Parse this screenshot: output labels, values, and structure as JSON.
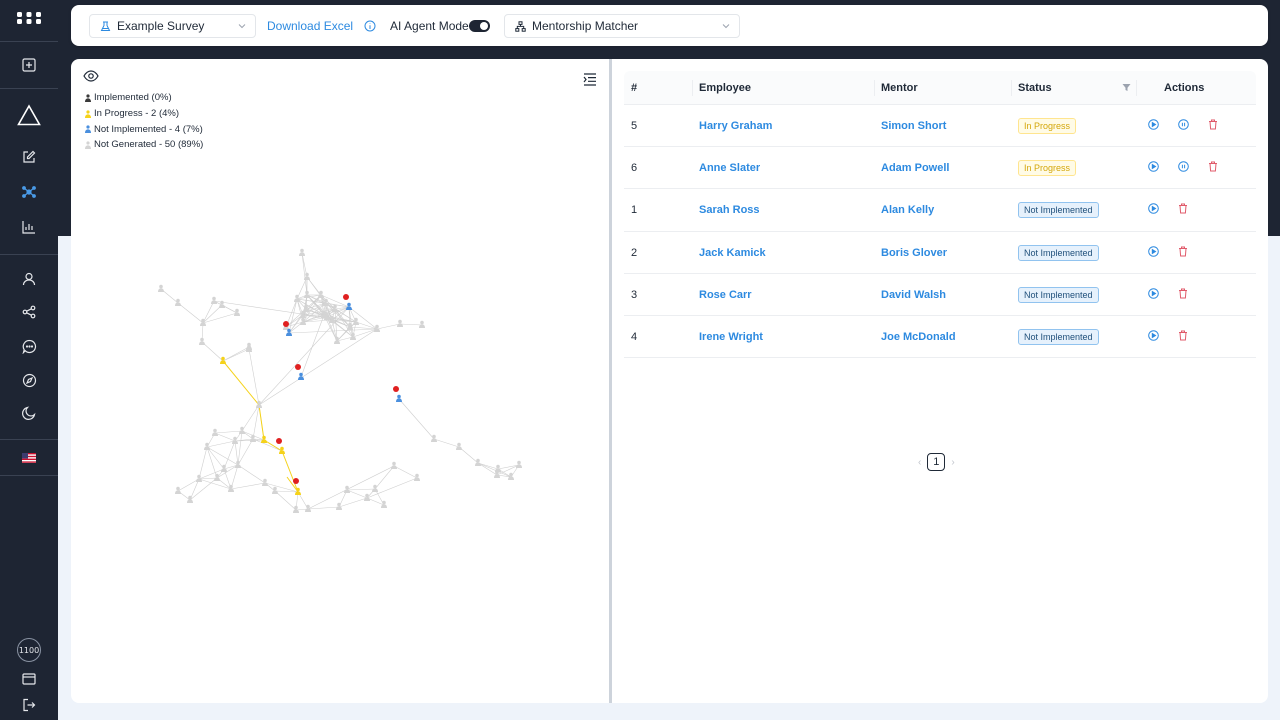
{
  "toolbar": {
    "survey_select": "Example Survey",
    "download_label": "Download Excel",
    "agent_mode_label": "AI Agent Mode",
    "agent_mode_on": true,
    "module_select": "Mentorship Matcher"
  },
  "sidebar": {
    "credit_badge": "1100",
    "items": [
      "add-icon",
      "triangle-logo-icon",
      "edit-icon",
      "network-icon",
      "bar-chart-icon",
      "user-icon",
      "share-icon",
      "chat-icon",
      "compass-icon",
      "moon-icon",
      "us-flag-icon",
      "card-icon",
      "logout-icon"
    ]
  },
  "legend": {
    "implemented": "Implemented (0%)",
    "in_progress": "In Progress - 2 (4%)",
    "not_implemented": "Not Implemented - 4 (7%)",
    "not_generated": "Not Generated - 50 (89%)"
  },
  "colors": {
    "implemented": "#3a3a3a",
    "in_progress": "#f5d21a",
    "not_implemented": "#4a8fde",
    "not_generated": "#d4d4d4",
    "badge": "#e02020",
    "accent": "#2d8ae0"
  },
  "table": {
    "headers": {
      "num": "#",
      "employee": "Employee",
      "mentor": "Mentor",
      "status": "Status",
      "actions": "Actions"
    },
    "rows": [
      {
        "num": "5",
        "employee": "Harry Graham",
        "mentor": "Simon Short",
        "status": "In Progress",
        "actions": [
          "play-icon",
          "pause-icon",
          "delete-icon"
        ]
      },
      {
        "num": "6",
        "employee": "Anne Slater",
        "mentor": "Adam Powell",
        "status": "In Progress",
        "actions": [
          "play-icon",
          "pause-icon",
          "delete-icon"
        ]
      },
      {
        "num": "1",
        "employee": "Sarah Ross",
        "mentor": "Alan Kelly",
        "status": "Not Implemented",
        "actions": [
          "play-icon",
          "delete-icon"
        ]
      },
      {
        "num": "2",
        "employee": "Jack Kamick",
        "mentor": "Boris Glover",
        "status": "Not Implemented",
        "actions": [
          "play-icon",
          "delete-icon"
        ]
      },
      {
        "num": "3",
        "employee": "Rose Carr",
        "mentor": "David Walsh",
        "status": "Not Implemented",
        "actions": [
          "play-icon",
          "delete-icon"
        ]
      },
      {
        "num": "4",
        "employee": "Irene Wright",
        "mentor": "Joe McDonald",
        "status": "Not Implemented",
        "actions": [
          "play-icon",
          "delete-icon"
        ]
      }
    ]
  },
  "pagination": {
    "current_page": "1"
  }
}
